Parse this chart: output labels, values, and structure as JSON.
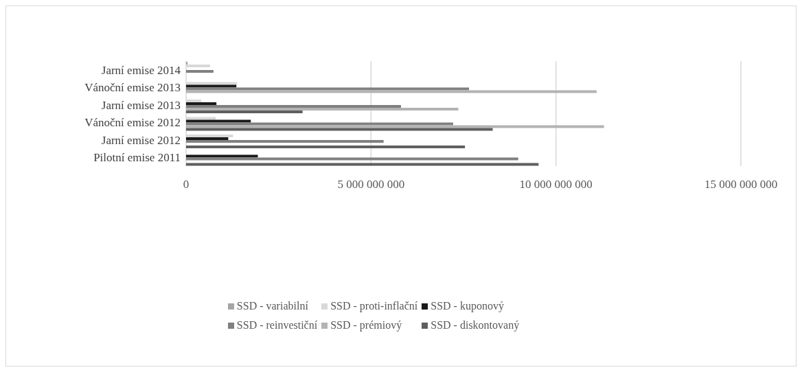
{
  "chart_data": {
    "type": "bar",
    "orientation": "horizontal",
    "categories": [
      "Jarní emise 2014",
      "Vánoční emise 2013",
      "Jarní emise 2013",
      "Vánoční emise 2012",
      "Jarní emise 2012",
      "Pilotní emise 2011"
    ],
    "series": [
      {
        "name": "SSD - variabilní",
        "color": "#a5a5a5",
        "values": [
          40000000,
          null,
          null,
          null,
          null,
          null
        ]
      },
      {
        "name": "SSD - proti-inflační",
        "color": "#d9d9d9",
        "values": [
          650000000,
          1380000000,
          410000000,
          800000000,
          1270000000,
          null
        ]
      },
      {
        "name": "SSD - kuponový",
        "color": "#1a1a1a",
        "values": [
          null,
          1360000000,
          820000000,
          1750000000,
          1140000000,
          1940000000
        ]
      },
      {
        "name": "SSD - reinvestiční",
        "color": "#808080",
        "values": [
          740000000,
          7650000000,
          5810000000,
          7220000000,
          5340000000,
          8980000000
        ]
      },
      {
        "name": "SSD - prémiový",
        "color": "#b3b3b3",
        "values": [
          null,
          11100000000,
          7360000000,
          11300000000,
          null,
          null
        ]
      },
      {
        "name": "SSD - diskontovaný",
        "color": "#5f5f5f",
        "values": [
          null,
          null,
          3150000000,
          8290000000,
          7540000000,
          9530000000
        ]
      }
    ],
    "xlim": [
      0,
      15000000000
    ],
    "xticks": [
      {
        "value": 0,
        "label": "0"
      },
      {
        "value": 5000000000,
        "label": "5 000 000 000"
      },
      {
        "value": 10000000000,
        "label": "10 000 000 000"
      },
      {
        "value": 15000000000,
        "label": "15 000 000 000"
      }
    ],
    "grid": "x",
    "legend": "bottom"
  }
}
